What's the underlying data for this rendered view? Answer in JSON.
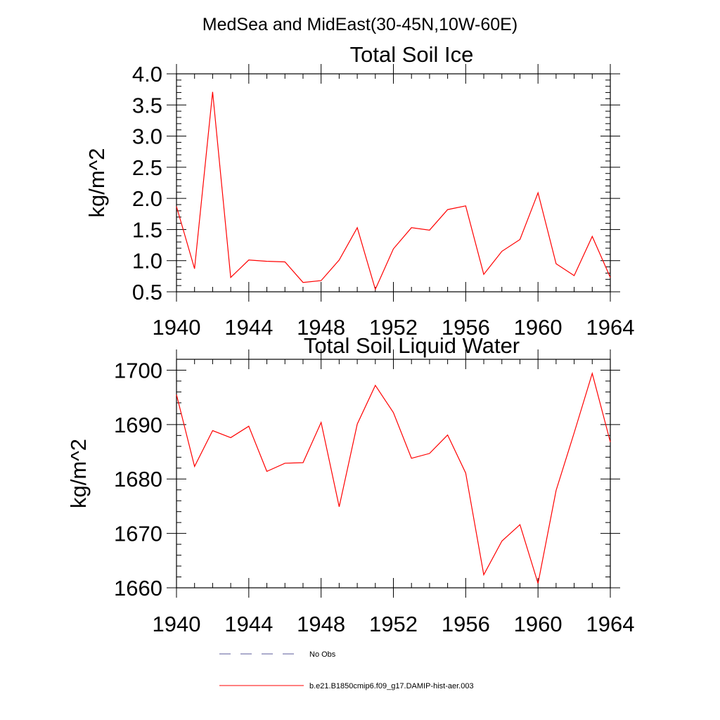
{
  "page_title": "MedSea and MidEast(30-45N,10W-60E)",
  "legend": {
    "items": [
      {
        "label": "No Obs",
        "style": "dashed",
        "color": "#5a5a9a"
      },
      {
        "label": "b.e21.B1850cmip6.f09_g17.DAMIP-hist-aer.003",
        "style": "solid",
        "color": "#ff0000"
      }
    ]
  },
  "chart_data": [
    {
      "type": "line",
      "title": "Total Soil Ice",
      "xlabel": "",
      "ylabel": "kg/m^2",
      "xlim": [
        1940,
        1964
      ],
      "ylim": [
        0.5,
        4.0
      ],
      "xticks": [
        1940,
        1944,
        1948,
        1952,
        1956,
        1960,
        1964
      ],
      "yticks": [
        0.5,
        1.0,
        1.5,
        2.0,
        2.5,
        3.0,
        3.5,
        4.0
      ],
      "ytick_labels": [
        "0.5",
        "1.0",
        "1.5",
        "2.0",
        "2.5",
        "3.0",
        "3.5",
        "4.0"
      ],
      "grid": false,
      "series": [
        {
          "name": "b.e21.B1850cmip6.f09_g17.DAMIP-hist-aer.003",
          "color": "#ff0000",
          "x": [
            1940,
            1941,
            1942,
            1943,
            1944,
            1945,
            1946,
            1947,
            1948,
            1949,
            1950,
            1951,
            1952,
            1953,
            1954,
            1955,
            1956,
            1957,
            1958,
            1959,
            1960,
            1961,
            1962,
            1963,
            1964
          ],
          "y": [
            1.87,
            0.87,
            3.71,
            0.73,
            1.01,
            0.99,
            0.98,
            0.65,
            0.68,
            1.01,
            1.53,
            0.54,
            1.19,
            1.53,
            1.49,
            1.82,
            1.88,
            0.78,
            1.15,
            1.34,
            2.09,
            0.95,
            0.76,
            1.39,
            0.73
          ]
        }
      ]
    },
    {
      "type": "line",
      "title": "Total Soil Liquid Water",
      "xlabel": "",
      "ylabel": "kg/m^2",
      "xlim": [
        1940,
        1964
      ],
      "ylim": [
        1660,
        1702
      ],
      "xticks": [
        1940,
        1944,
        1948,
        1952,
        1956,
        1960,
        1964
      ],
      "yticks": [
        1660,
        1670,
        1680,
        1690,
        1700
      ],
      "ytick_labels": [
        "1660",
        "1670",
        "1680",
        "1690",
        "1700"
      ],
      "grid": false,
      "series": [
        {
          "name": "b.e21.B1850cmip6.f09_g17.DAMIP-hist-aer.003",
          "color": "#ff0000",
          "x": [
            1940,
            1941,
            1942,
            1943,
            1944,
            1945,
            1946,
            1947,
            1948,
            1949,
            1950,
            1951,
            1952,
            1953,
            1954,
            1955,
            1956,
            1957,
            1958,
            1959,
            1960,
            1961,
            1962,
            1963,
            1964
          ],
          "y": [
            1695.5,
            1682.3,
            1688.9,
            1687.6,
            1689.7,
            1681.4,
            1682.9,
            1683.0,
            1690.4,
            1674.9,
            1690.1,
            1697.2,
            1692.2,
            1683.8,
            1684.7,
            1688.1,
            1681.1,
            1662.4,
            1668.6,
            1671.6,
            1660.8,
            1677.9,
            1688.5,
            1699.4,
            1686.8
          ]
        }
      ]
    }
  ]
}
